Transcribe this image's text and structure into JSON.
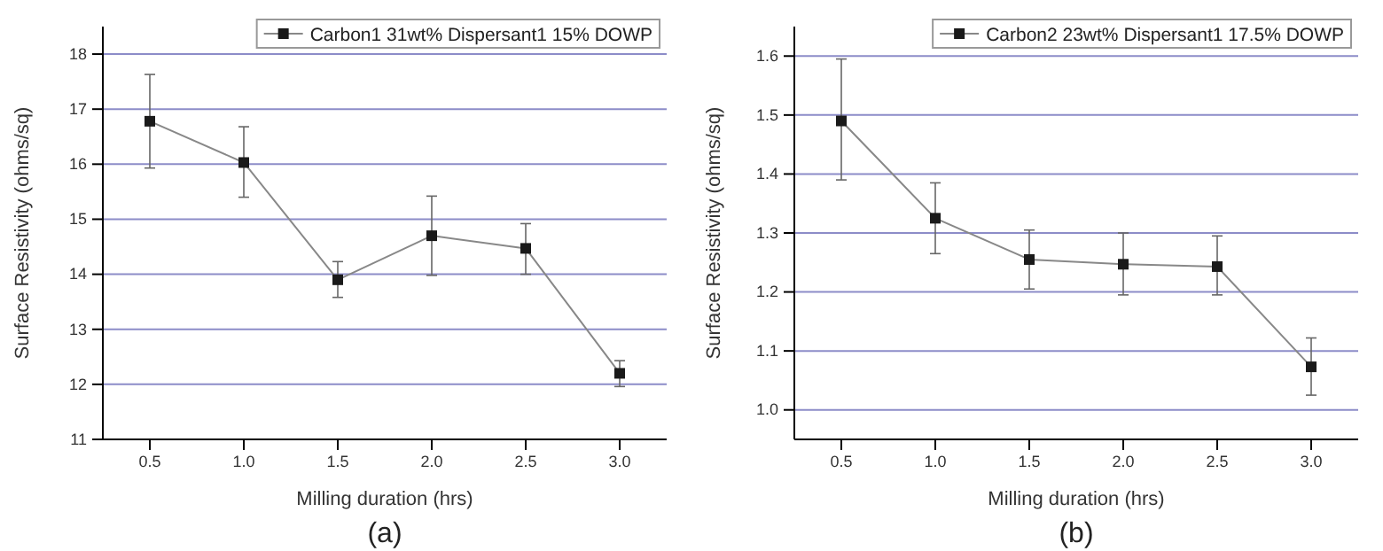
{
  "chart_data": [
    {
      "type": "line",
      "xlabel": "Milling duration (hrs)",
      "ylabel": "Surface Resistivity (ohms/sq)",
      "x": [
        0.5,
        1.0,
        1.5,
        2.0,
        2.5,
        3.0
      ],
      "xlim": [
        0.25,
        3.25
      ],
      "ylim": [
        11,
        18.5
      ],
      "xticks": [
        {
          "value": 0.5,
          "label": "0.5"
        },
        {
          "value": 1,
          "label": "1.0"
        },
        {
          "value": 1.5,
          "label": "1.5"
        },
        {
          "value": 2,
          "label": "2.0"
        },
        {
          "value": 2.5,
          "label": "2.5"
        },
        {
          "value": 3,
          "label": "3.0"
        }
      ],
      "yticks": [
        11,
        12,
        13,
        14,
        15,
        16,
        17,
        18
      ],
      "grid": "y",
      "legend": "top right",
      "marker": "square",
      "line_style": "solid",
      "annotations": [
        "(a)"
      ],
      "series": [
        {
          "name": "Carbon1 31wt% Dispersant1 15% DOWP",
          "color": "#1a1a1a",
          "values": [
            16.78,
            16.03,
            13.9,
            14.7,
            14.47,
            12.2
          ],
          "errors": [
            [
              15.93,
              17.63
            ],
            [
              15.4,
              16.68
            ],
            [
              13.58,
              14.23
            ],
            [
              13.98,
              15.42
            ],
            [
              14.0,
              14.92
            ],
            [
              11.96,
              12.43
            ]
          ]
        }
      ]
    },
    {
      "type": "line",
      "xlabel": "Milling duration (hrs)",
      "ylabel": "Surface Resistivity (ohms/sq)",
      "x": [
        0.5,
        1.0,
        1.5,
        2.0,
        2.5,
        3.0
      ],
      "xlim": [
        0.25,
        3.25
      ],
      "ylim": [
        0.95,
        1.65
      ],
      "xticks": [
        {
          "value": 0.5,
          "label": "0.5"
        },
        {
          "value": 1,
          "label": "1.0"
        },
        {
          "value": 1.5,
          "label": "1.5"
        },
        {
          "value": 2,
          "label": "2.0"
        },
        {
          "value": 2.5,
          "label": "2.5"
        },
        {
          "value": 3,
          "label": "3.0"
        }
      ],
      "yticks": [
        {
          "value": 1,
          "label": "1.0"
        },
        1.1,
        1.2,
        1.3,
        1.4,
        1.5,
        1.6
      ],
      "grid": "y",
      "legend": "top right",
      "marker": "square",
      "line_style": "solid",
      "annotations": [
        "(b)"
      ],
      "series": [
        {
          "name": "Carbon2 23wt% Dispersant1 17.5% DOWP",
          "color": "#1a1a1a",
          "values": [
            1.49,
            1.325,
            1.255,
            1.247,
            1.243,
            1.073
          ],
          "errors": [
            [
              1.39,
              1.595
            ],
            [
              1.265,
              1.385
            ],
            [
              1.205,
              1.305
            ],
            [
              1.195,
              1.3
            ],
            [
              1.195,
              1.295
            ],
            [
              1.025,
              1.122
            ]
          ]
        }
      ]
    }
  ]
}
